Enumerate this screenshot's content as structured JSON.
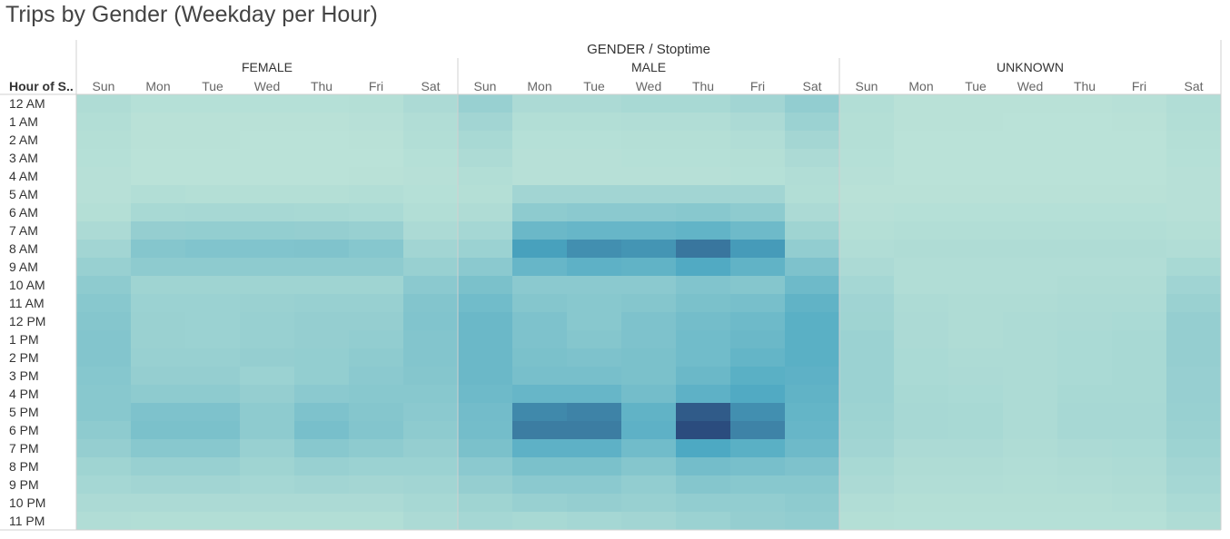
{
  "title": "Trips by Gender (Weekday per Hour)",
  "chart_data": {
    "type": "heatmap",
    "title": "Trips by Gender (Weekday per Hour)",
    "column_header": "GENDER / Stoptime",
    "row_header": "Hour of S..",
    "groups": [
      "FEMALE",
      "MALE",
      "UNKNOWN"
    ],
    "days": [
      "Sun",
      "Mon",
      "Tue",
      "Wed",
      "Thu",
      "Fri",
      "Sat"
    ],
    "hours": [
      "12 AM",
      "1 AM",
      "2 AM",
      "3 AM",
      "4 AM",
      "5 AM",
      "6 AM",
      "7 AM",
      "8 AM",
      "9 AM",
      "10 AM",
      "11 AM",
      "12 PM",
      "1 PM",
      "2 PM",
      "3 PM",
      "4 PM",
      "5 PM",
      "6 PM",
      "7 PM",
      "8 PM",
      "9 PM",
      "10 PM",
      "11 PM"
    ],
    "value_scale": [
      0,
      100
    ],
    "color_low": "#bce3d8",
    "color_mid": "#4aa7c2",
    "color_high": "#2b4c7e",
    "values": {
      "FEMALE": [
        [
          8,
          4,
          4,
          4,
          4,
          5,
          10
        ],
        [
          6,
          2,
          2,
          2,
          2,
          3,
          7
        ],
        [
          5,
          2,
          2,
          1,
          1,
          2,
          6
        ],
        [
          4,
          1,
          1,
          1,
          1,
          1,
          4
        ],
        [
          3,
          1,
          1,
          1,
          1,
          2,
          3
        ],
        [
          3,
          6,
          5,
          5,
          5,
          6,
          4
        ],
        [
          5,
          12,
          13,
          13,
          12,
          11,
          6
        ],
        [
          10,
          24,
          25,
          25,
          24,
          22,
          10
        ],
        [
          16,
          34,
          36,
          36,
          37,
          33,
          16
        ],
        [
          22,
          28,
          28,
          28,
          28,
          28,
          22
        ],
        [
          28,
          18,
          18,
          18,
          18,
          18,
          30
        ],
        [
          32,
          20,
          20,
          21,
          22,
          22,
          35
        ],
        [
          34,
          21,
          20,
          22,
          24,
          24,
          36
        ],
        [
          35,
          21,
          20,
          22,
          24,
          26,
          35
        ],
        [
          35,
          22,
          22,
          24,
          25,
          28,
          35
        ],
        [
          33,
          24,
          24,
          20,
          25,
          30,
          34
        ],
        [
          32,
          28,
          28,
          24,
          30,
          32,
          32
        ],
        [
          32,
          38,
          38,
          28,
          38,
          34,
          30
        ],
        [
          28,
          40,
          40,
          28,
          42,
          35,
          28
        ],
        [
          24,
          32,
          32,
          22,
          32,
          28,
          24
        ],
        [
          18,
          22,
          22,
          18,
          22,
          20,
          20
        ],
        [
          14,
          16,
          16,
          14,
          16,
          15,
          16
        ],
        [
          10,
          10,
          10,
          10,
          10,
          10,
          13
        ],
        [
          7,
          6,
          6,
          6,
          6,
          6,
          10
        ]
      ],
      "MALE": [
        [
          22,
          10,
          10,
          12,
          12,
          16,
          26
        ],
        [
          16,
          6,
          6,
          7,
          7,
          10,
          20
        ],
        [
          12,
          4,
          4,
          5,
          5,
          7,
          15
        ],
        [
          9,
          3,
          3,
          4,
          4,
          5,
          10
        ],
        [
          6,
          3,
          3,
          3,
          3,
          4,
          7
        ],
        [
          5,
          16,
          16,
          16,
          16,
          16,
          6
        ],
        [
          8,
          28,
          30,
          30,
          32,
          28,
          10
        ],
        [
          14,
          50,
          52,
          52,
          55,
          48,
          18
        ],
        [
          20,
          72,
          78,
          76,
          86,
          74,
          26
        ],
        [
          30,
          52,
          58,
          56,
          66,
          56,
          38
        ],
        [
          40,
          30,
          30,
          30,
          36,
          34,
          48
        ],
        [
          46,
          34,
          32,
          34,
          40,
          42,
          56
        ],
        [
          50,
          38,
          32,
          38,
          44,
          48,
          60
        ],
        [
          50,
          38,
          34,
          38,
          46,
          50,
          60
        ],
        [
          50,
          40,
          38,
          40,
          46,
          54,
          60
        ],
        [
          50,
          42,
          42,
          40,
          50,
          60,
          58
        ],
        [
          48,
          52,
          52,
          44,
          58,
          66,
          56
        ],
        [
          45,
          80,
          82,
          56,
          95,
          78,
          54
        ],
        [
          44,
          84,
          84,
          58,
          100,
          82,
          52
        ],
        [
          40,
          58,
          58,
          46,
          68,
          60,
          48
        ],
        [
          30,
          40,
          40,
          34,
          44,
          42,
          38
        ],
        [
          24,
          30,
          30,
          26,
          34,
          32,
          32
        ],
        [
          18,
          22,
          24,
          22,
          26,
          26,
          28
        ],
        [
          14,
          12,
          14,
          16,
          20,
          24,
          26
        ]
      ],
      "UNKNOWN": [
        [
          6,
          2,
          2,
          2,
          2,
          3,
          7
        ],
        [
          5,
          2,
          2,
          1,
          1,
          2,
          6
        ],
        [
          5,
          1,
          1,
          1,
          1,
          1,
          5
        ],
        [
          4,
          1,
          1,
          1,
          1,
          1,
          4
        ],
        [
          3,
          1,
          1,
          1,
          1,
          1,
          3
        ],
        [
          2,
          2,
          2,
          2,
          2,
          2,
          3
        ],
        [
          3,
          4,
          4,
          4,
          4,
          4,
          3
        ],
        [
          5,
          6,
          6,
          6,
          6,
          6,
          5
        ],
        [
          7,
          8,
          8,
          8,
          8,
          8,
          7
        ],
        [
          10,
          7,
          7,
          7,
          7,
          7,
          12
        ],
        [
          14,
          7,
          7,
          7,
          8,
          8,
          17
        ],
        [
          17,
          9,
          8,
          8,
          9,
          9,
          21
        ],
        [
          18,
          10,
          8,
          9,
          10,
          11,
          24
        ],
        [
          20,
          10,
          8,
          9,
          11,
          12,
          24
        ],
        [
          20,
          11,
          9,
          9,
          11,
          12,
          24
        ],
        [
          20,
          11,
          10,
          9,
          11,
          12,
          23
        ],
        [
          20,
          12,
          11,
          9,
          12,
          12,
          23
        ],
        [
          19,
          13,
          12,
          9,
          13,
          13,
          22
        ],
        [
          18,
          13,
          12,
          9,
          13,
          13,
          21
        ],
        [
          16,
          10,
          10,
          8,
          10,
          11,
          19
        ],
        [
          12,
          8,
          8,
          7,
          8,
          9,
          16
        ],
        [
          10,
          7,
          7,
          6,
          7,
          8,
          14
        ],
        [
          7,
          5,
          5,
          5,
          5,
          6,
          11
        ],
        [
          5,
          4,
          4,
          4,
          4,
          4,
          8
        ]
      ]
    }
  }
}
